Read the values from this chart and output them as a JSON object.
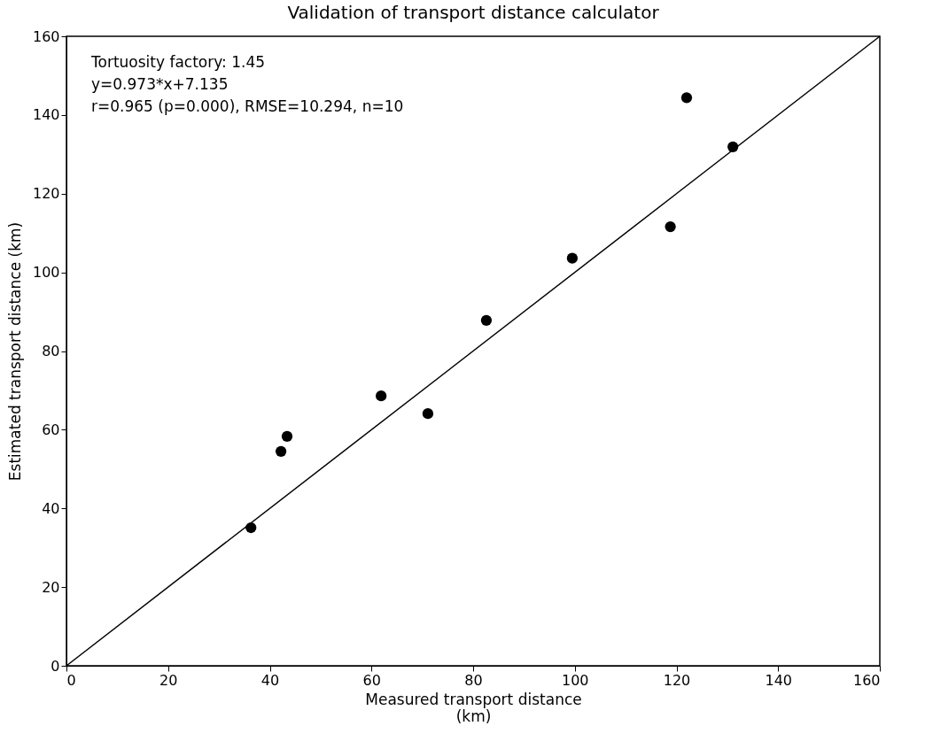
{
  "chart_data": {
    "type": "scatter",
    "title": "Validation of transport distance calculator",
    "xlabel": "Measured transport distance\n(km)",
    "ylabel": "Estimated transport distance (km)",
    "annotations": [
      "Tortuosity factory: 1.45",
      "y=0.973*x+7.135",
      "r=0.965 (p=0.000), RMSE=10.294, n=10"
    ],
    "xlim": [
      0,
      160
    ],
    "ylim": [
      0,
      160
    ],
    "xticks": [
      0,
      20,
      40,
      60,
      80,
      100,
      120,
      140,
      160
    ],
    "yticks": [
      0,
      20,
      40,
      60,
      80,
      100,
      120,
      140,
      160
    ],
    "grid": false,
    "marker": "circle",
    "series": [
      {
        "color": "#000000",
        "x": [
          36.3,
          42.2,
          43.4,
          61.9,
          71.1,
          82.6,
          99.5,
          118.8,
          122.0,
          131.1
        ],
        "values": [
          35.1,
          54.5,
          58.3,
          68.6,
          64.1,
          87.8,
          103.6,
          111.6,
          144.4,
          131.9
        ]
      },
      {
        "type": "line",
        "marker": "none",
        "color": "#000000",
        "x": [
          0,
          160
        ],
        "values": [
          0,
          160
        ]
      }
    ]
  }
}
